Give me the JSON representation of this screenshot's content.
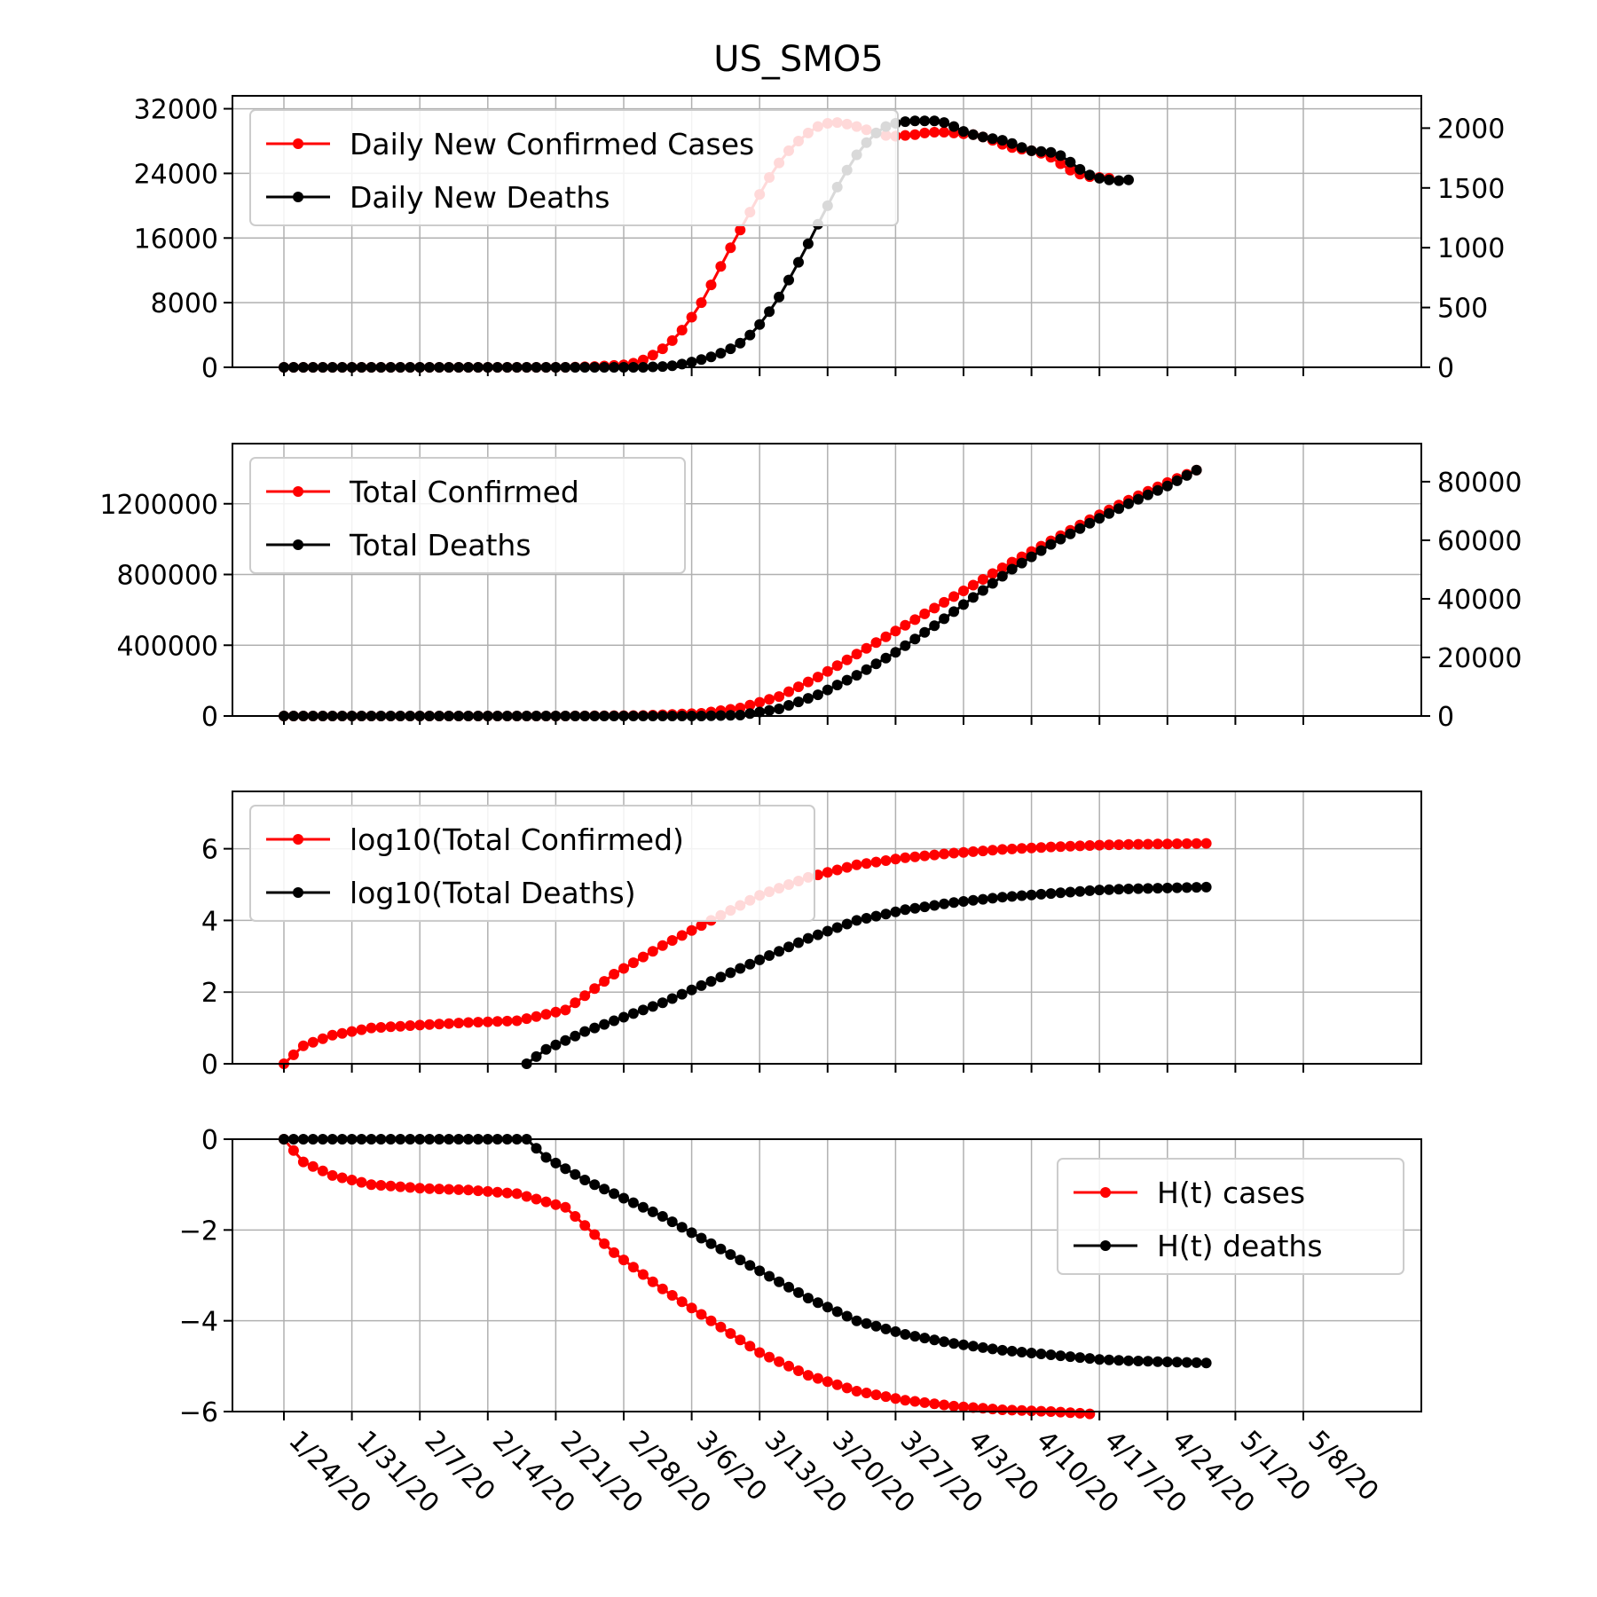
{
  "chart_data": {
    "title": "US_SMO5",
    "type": "line",
    "x_tick_labels": [
      "1/24/20",
      "1/31/20",
      "2/7/20",
      "2/14/20",
      "2/21/20",
      "2/28/20",
      "3/6/20",
      "3/13/20",
      "3/20/20",
      "3/27/20",
      "4/3/20",
      "4/10/20",
      "4/17/20",
      "4/24/20",
      "5/1/20",
      "5/8/20"
    ],
    "x_range_days": [
      1,
      81
    ],
    "grid": true,
    "colors": {
      "cases": "#ff0000",
      "deaths": "#000000"
    },
    "panels": [
      {
        "name": "daily-new",
        "legend_loc": "upper-left",
        "y_left": {
          "range": [
            0,
            33600
          ],
          "ticks": [
            0,
            8000,
            16000,
            24000,
            32000
          ]
        },
        "y_right": {
          "range": [
            0,
            2270
          ],
          "ticks": [
            0,
            500,
            1000,
            1500,
            2000
          ]
        },
        "series": [
          {
            "name": "Daily New Confirmed Cases",
            "axis": "left",
            "color": "#ff0000",
            "points": [
              [
                1,
                0
              ],
              [
                10,
                0
              ],
              [
                20,
                0
              ],
              [
                30,
                0
              ],
              [
                33,
                100
              ],
              [
                36,
                300
              ],
              [
                37,
                500
              ],
              [
                38,
                900
              ],
              [
                39,
                1500
              ],
              [
                40,
                2300
              ],
              [
                41,
                3300
              ],
              [
                42,
                4600
              ],
              [
                43,
                6200
              ],
              [
                44,
                8000
              ],
              [
                45,
                10200
              ],
              [
                46,
                12500
              ],
              [
                47,
                14800
              ],
              [
                48,
                17000
              ],
              [
                49,
                19200
              ],
              [
                50,
                21400
              ],
              [
                51,
                23500
              ],
              [
                52,
                25300
              ],
              [
                53,
                26800
              ],
              [
                54,
                28000
              ],
              [
                55,
                29000
              ],
              [
                56,
                29800
              ],
              [
                57,
                30200
              ],
              [
                58,
                30300
              ],
              [
                59,
                30100
              ],
              [
                60,
                29800
              ],
              [
                61,
                29400
              ],
              [
                62,
                29000
              ],
              [
                63,
                28700
              ],
              [
                64,
                28600
              ],
              [
                65,
                28700
              ],
              [
                66,
                28800
              ],
              [
                67,
                29000
              ],
              [
                68,
                29100
              ],
              [
                69,
                29100
              ],
              [
                70,
                29000
              ],
              [
                71,
                28900
              ],
              [
                72,
                28800
              ],
              [
                73,
                28500
              ],
              [
                74,
                28100
              ],
              [
                75,
                27600
              ],
              [
                76,
                27200
              ],
              [
                77,
                27000
              ],
              [
                78,
                26800
              ],
              [
                79,
                26500
              ],
              [
                80,
                26000
              ],
              [
                81,
                25200
              ],
              [
                82,
                24400
              ],
              [
                83,
                23900
              ],
              [
                84,
                23600
              ],
              [
                85,
                23500
              ],
              [
                86,
                23400
              ]
            ]
          },
          {
            "name": "Daily New Deaths",
            "axis": "left",
            "color": "#000000",
            "points": [
              [
                1,
                0
              ],
              [
                20,
                0
              ],
              [
                35,
                0
              ],
              [
                38,
                0
              ],
              [
                39,
                50
              ],
              [
                40,
                100
              ],
              [
                41,
                200
              ],
              [
                42,
                400
              ],
              [
                43,
                650
              ],
              [
                44,
                950
              ],
              [
                45,
                1300
              ],
              [
                46,
                1750
              ],
              [
                47,
                2300
              ],
              [
                48,
                3000
              ],
              [
                49,
                4000
              ],
              [
                50,
                5300
              ],
              [
                51,
                6900
              ],
              [
                52,
                8700
              ],
              [
                53,
                10800
              ],
              [
                54,
                13000
              ],
              [
                55,
                15300
              ],
              [
                56,
                17700
              ],
              [
                57,
                20000
              ],
              [
                58,
                22300
              ],
              [
                59,
                24400
              ],
              [
                60,
                26300
              ],
              [
                61,
                27800
              ],
              [
                62,
                29000
              ],
              [
                63,
                29800
              ],
              [
                64,
                30200
              ],
              [
                65,
                30400
              ],
              [
                66,
                30500
              ],
              [
                67,
                30500
              ],
              [
                68,
                30500
              ],
              [
                69,
                30300
              ],
              [
                70,
                29800
              ],
              [
                71,
                29200
              ],
              [
                72,
                28800
              ],
              [
                73,
                28500
              ],
              [
                74,
                28300
              ],
              [
                75,
                28100
              ],
              [
                76,
                27700
              ],
              [
                77,
                27200
              ],
              [
                78,
                26800
              ],
              [
                79,
                26700
              ],
              [
                80,
                26600
              ],
              [
                81,
                26200
              ],
              [
                82,
                25400
              ],
              [
                83,
                24500
              ],
              [
                84,
                23800
              ],
              [
                85,
                23400
              ],
              [
                86,
                23200
              ],
              [
                87,
                23100
              ],
              [
                88,
                23200
              ]
            ]
          }
        ]
      },
      {
        "name": "totals",
        "legend_loc": "upper-left",
        "y_left": {
          "range": [
            0,
            1540000
          ],
          "ticks": [
            0,
            400000,
            800000,
            1200000
          ]
        },
        "y_right": {
          "range": [
            0,
            93000
          ],
          "ticks": [
            0,
            20000,
            40000,
            60000,
            80000
          ]
        },
        "series": [
          {
            "name": "Total Confirmed",
            "axis": "left",
            "color": "#ff0000",
            "points": [
              [
                1,
                0
              ],
              [
                30,
                0
              ],
              [
                38,
                3000
              ],
              [
                44,
                15000
              ],
              [
                48,
                45000
              ],
              [
                52,
                110000
              ],
              [
                56,
                220000
              ],
              [
                60,
                350000
              ],
              [
                64,
                480000
              ],
              [
                68,
                610000
              ],
              [
                72,
                740000
              ],
              [
                76,
                870000
              ],
              [
                80,
                990000
              ],
              [
                84,
                1110000
              ],
              [
                88,
                1220000
              ],
              [
                92,
                1320000
              ],
              [
                95,
                1390000
              ]
            ]
          },
          {
            "name": "Total Deaths",
            "axis": "left",
            "color": "#000000",
            "points": [
              [
                1,
                0
              ],
              [
                44,
                0
              ],
              [
                48,
                5000
              ],
              [
                52,
                40000
              ],
              [
                56,
                120000
              ],
              [
                60,
                230000
              ],
              [
                64,
                360000
              ],
              [
                68,
                510000
              ],
              [
                72,
                670000
              ],
              [
                76,
                830000
              ],
              [
                80,
                970000
              ],
              [
                84,
                1090000
              ],
              [
                88,
                1200000
              ],
              [
                92,
                1300000
              ],
              [
                95,
                1390000
              ]
            ]
          }
        ]
      },
      {
        "name": "log10",
        "legend_loc": "upper-left",
        "y_left": {
          "range": [
            0,
            7.6
          ],
          "ticks": [
            0,
            2,
            4,
            6
          ]
        },
        "series": [
          {
            "name": "log10(Total Confirmed)",
            "color": "#ff0000",
            "points": [
              [
                1,
                0.0
              ],
              [
                3,
                0.5
              ],
              [
                6,
                0.8
              ],
              [
                10,
                1.0
              ],
              [
                15,
                1.08
              ],
              [
                20,
                1.15
              ],
              [
                25,
                1.2
              ],
              [
                30,
                1.5
              ],
              [
                35,
                2.5
              ],
              [
                40,
                3.3
              ],
              [
                45,
                4.0
              ],
              [
                50,
                4.7
              ],
              [
                55,
                5.2
              ],
              [
                60,
                5.55
              ],
              [
                65,
                5.75
              ],
              [
                70,
                5.88
              ],
              [
                75,
                5.98
              ],
              [
                80,
                6.05
              ],
              [
                85,
                6.1
              ],
              [
                88,
                6.12
              ],
              [
                96,
                6.15
              ]
            ]
          },
          {
            "name": "log10(Total Deaths)",
            "color": "#000000",
            "points": [
              [
                26,
                0.0
              ],
              [
                28,
                0.4
              ],
              [
                32,
                0.9
              ],
              [
                36,
                1.3
              ],
              [
                40,
                1.7
              ],
              [
                45,
                2.3
              ],
              [
                50,
                2.9
              ],
              [
                55,
                3.5
              ],
              [
                60,
                4.0
              ],
              [
                65,
                4.3
              ],
              [
                70,
                4.5
              ],
              [
                75,
                4.65
              ],
              [
                80,
                4.75
              ],
              [
                85,
                4.85
              ],
              [
                88,
                4.88
              ],
              [
                96,
                4.93
              ]
            ]
          }
        ]
      },
      {
        "name": "h-t",
        "legend_loc": "upper-right",
        "y_left": {
          "range": [
            -6,
            0
          ],
          "ticks": [
            -6,
            -4,
            -2,
            0
          ]
        },
        "series": [
          {
            "name": "H(t) cases",
            "color": "#ff0000",
            "points": [
              [
                1,
                0.0
              ],
              [
                3,
                -0.5
              ],
              [
                6,
                -0.8
              ],
              [
                10,
                -1.0
              ],
              [
                15,
                -1.08
              ],
              [
                20,
                -1.12
              ],
              [
                25,
                -1.2
              ],
              [
                30,
                -1.5
              ],
              [
                35,
                -2.5
              ],
              [
                40,
                -3.3
              ],
              [
                45,
                -4.0
              ],
              [
                50,
                -4.7
              ],
              [
                55,
                -5.2
              ],
              [
                60,
                -5.55
              ],
              [
                65,
                -5.75
              ],
              [
                70,
                -5.88
              ],
              [
                75,
                -5.96
              ],
              [
                80,
                -6.0
              ],
              [
                84,
                -6.05
              ]
            ]
          },
          {
            "name": "H(t) deaths",
            "color": "#000000",
            "points": [
              [
                1,
                0
              ],
              [
                4,
                0
              ],
              [
                8,
                0
              ],
              [
                12,
                0
              ],
              [
                16,
                0
              ],
              [
                20,
                0
              ],
              [
                23,
                0
              ],
              [
                26,
                0
              ],
              [
                28,
                -0.4
              ],
              [
                32,
                -0.9
              ],
              [
                36,
                -1.3
              ],
              [
                40,
                -1.7
              ],
              [
                45,
                -2.3
              ],
              [
                50,
                -2.9
              ],
              [
                55,
                -3.5
              ],
              [
                60,
                -4.0
              ],
              [
                65,
                -4.3
              ],
              [
                70,
                -4.5
              ],
              [
                75,
                -4.65
              ],
              [
                80,
                -4.75
              ],
              [
                85,
                -4.85
              ],
              [
                88,
                -4.88
              ],
              [
                96,
                -4.93
              ]
            ]
          }
        ]
      }
    ]
  }
}
